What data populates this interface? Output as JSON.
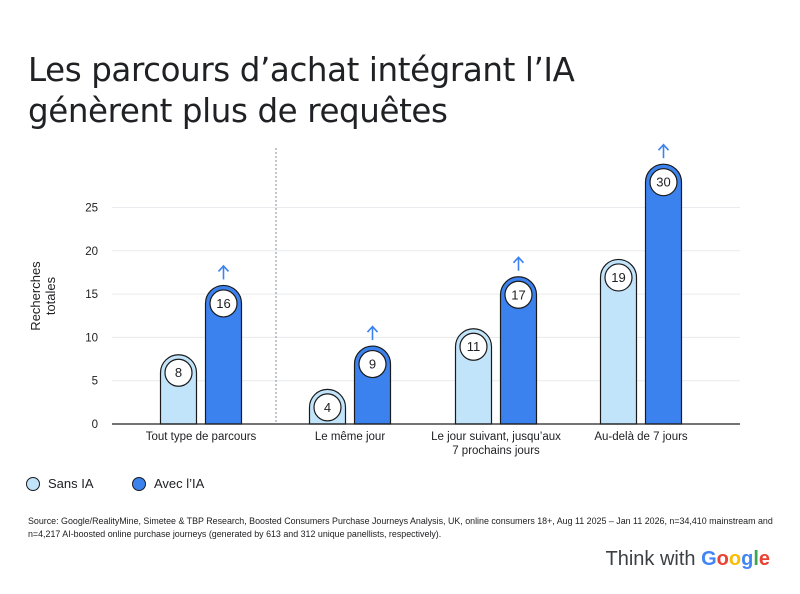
{
  "title_lines": [
    "Les parcours d’achat intégrant l’IA",
    "génèrent plus de requêtes"
  ],
  "legend": [
    {
      "label": "Sans IA",
      "color": "#c2e4fb"
    },
    {
      "label": "Avec l’IA",
      "color": "#3b82ef"
    }
  ],
  "source": "Source: Google/RealityMine, Simetee & TBP Research, Boosted Consumers Purchase Journeys Analysis, UK, online consumers 18+, Aug 11 2025 – Jan 11 2026, n=34,410 mainstream and n=4,217 AI-boosted online purchase journeys (generated by 613 and 312 unique panellists, respectively).",
  "brand": {
    "prefix": "Think with ",
    "name": "Google",
    "letter_colors": [
      "#4285f4",
      "#ea4335",
      "#fbbc05",
      "#4285f4",
      "#34a853",
      "#ea4335"
    ]
  },
  "chart_data": {
    "type": "bar",
    "title": "Les parcours d’achat intégrant l’IA génèrent plus de requêtes",
    "ylabel": [
      "Recherches",
      "totales"
    ],
    "xlabel": "",
    "ylim": [
      0,
      30
    ],
    "yticks": [
      0,
      5,
      10,
      15,
      20,
      25
    ],
    "grid": true,
    "legend_position": "bottom-left",
    "categories": [
      [
        "Tout type de parcours"
      ],
      [
        "Le même jour"
      ],
      [
        "Le jour suivant, jusqu’aux",
        "7 prochains jours"
      ],
      [
        "Au-delà de 7 jours"
      ]
    ],
    "series": [
      {
        "name": "Sans IA",
        "values": [
          8,
          4,
          11,
          19
        ],
        "color": "#c2e4fb",
        "label_color": "#c2e4fb"
      },
      {
        "name": "Avec l’IA",
        "values": [
          16,
          9,
          17,
          30
        ],
        "color": "#3b82ef",
        "label_color": "#ffffff"
      }
    ],
    "increase_arrow_color": "#3b82ef",
    "axis_color": "#202124",
    "grid_color": "#e8eaed",
    "divider_color": "#9aa0a6"
  }
}
